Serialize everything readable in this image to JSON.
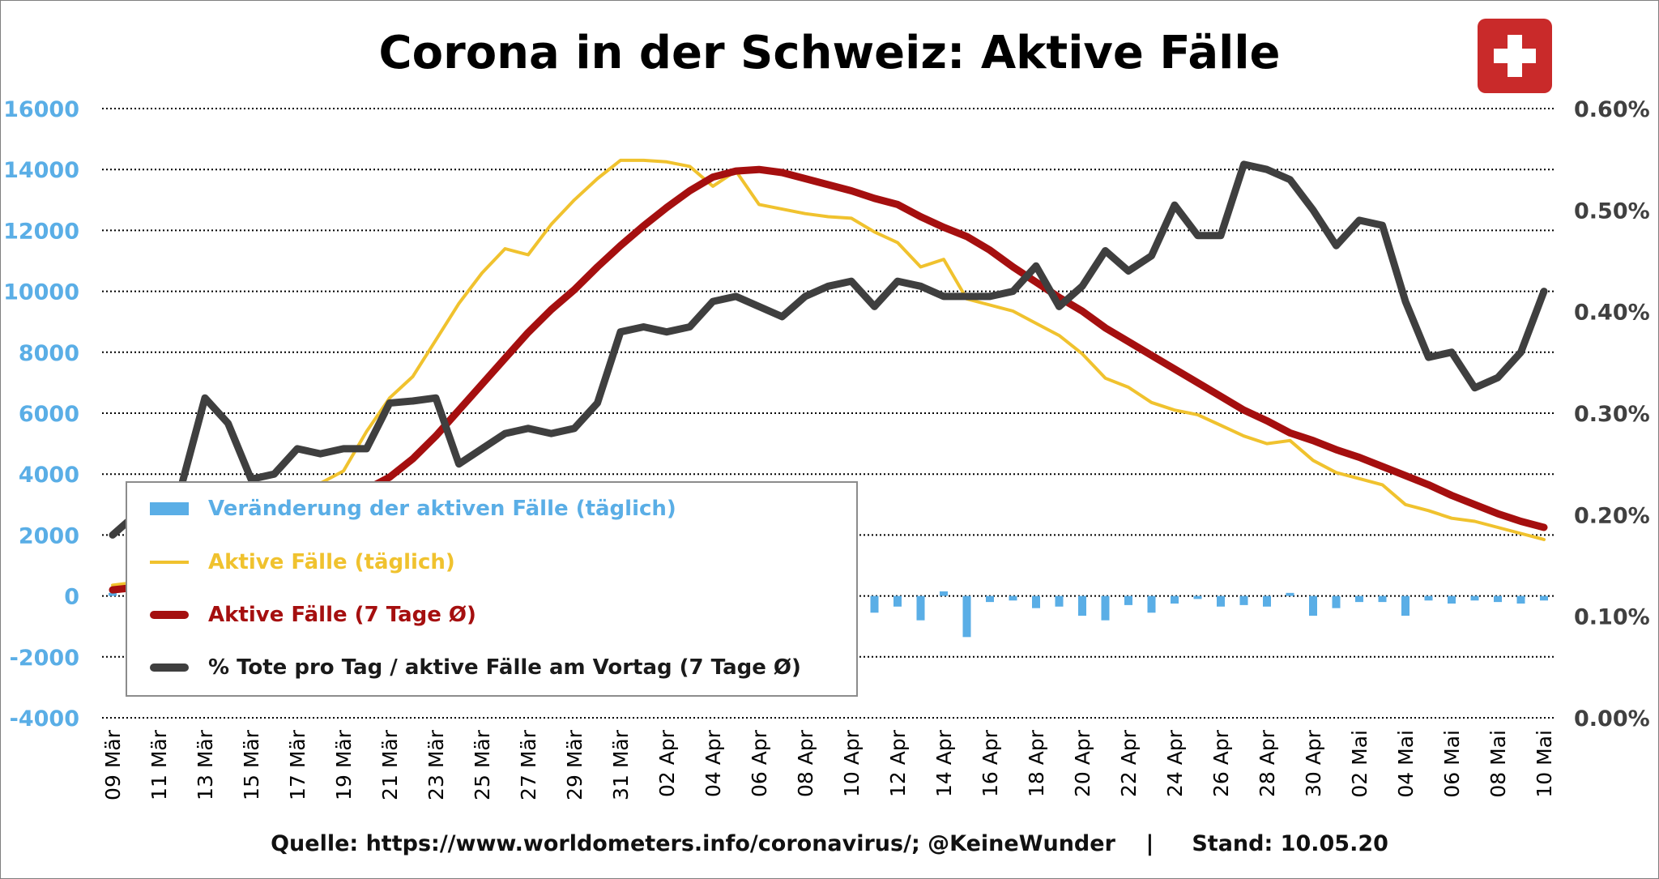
{
  "title": "Corona in der Schweiz: Aktive Fälle",
  "source": "Quelle: https://www.worldometers.info/coronavirus/; @KeineWunder    |     Stand: 10.05.20",
  "flag_icon": "swiss-flag-icon",
  "colors": {
    "left_axis": "#5aaee6",
    "right_axis": "#404040",
    "delta_bars": "#5aaee6",
    "active_daily": "#f0c22e",
    "active_avg": "#a50f0f",
    "death_rate": "#3f3f3f",
    "grid": "#000000"
  },
  "legend": {
    "delta": "Veränderung der aktiven Fälle (täglich)",
    "active_daily": "Aktive Fälle (täglich)",
    "active_avg": "Aktive Fälle (7 Tage Ø)",
    "death_rate": "% Tote pro Tag / aktive Fälle am Vortag (7 Tage Ø)"
  },
  "chart_data": {
    "type": "line",
    "title": "Corona in der Schweiz: Aktive Fälle",
    "x": [
      "09 Mär",
      "10 Mär",
      "11 Mär",
      "12 Mär",
      "13 Mär",
      "14 Mär",
      "15 Mär",
      "16 Mär",
      "17 Mär",
      "18 Mär",
      "19 Mär",
      "20 Mär",
      "21 Mär",
      "22 Mär",
      "23 Mär",
      "24 Mär",
      "25 Mär",
      "26 Mär",
      "27 Mär",
      "28 Mär",
      "29 Mär",
      "30 Mär",
      "31 Mär",
      "01 Apr",
      "02 Apr",
      "03 Apr",
      "04 Apr",
      "05 Apr",
      "06 Apr",
      "07 Apr",
      "08 Apr",
      "09 Apr",
      "10 Apr",
      "11 Apr",
      "12 Apr",
      "13 Apr",
      "14 Apr",
      "15 Apr",
      "16 Apr",
      "17 Apr",
      "18 Apr",
      "19 Apr",
      "20 Apr",
      "21 Apr",
      "22 Apr",
      "23 Apr",
      "24 Apr",
      "25 Apr",
      "26 Apr",
      "27 Apr",
      "28 Apr",
      "29 Apr",
      "30 Apr",
      "01 Mai",
      "02 Mai",
      "03 Mai",
      "04 Mai",
      "05 Mai",
      "06 Mai",
      "07 Mai",
      "08 Mai",
      "09 Mai",
      "10 Mai"
    ],
    "x_tick_labels": [
      "09 Mär",
      "11 Mär",
      "13 Mär",
      "15 Mär",
      "17 Mär",
      "19 Mär",
      "21 Mär",
      "23 Mär",
      "25 Mär",
      "27 Mär",
      "29 Mär",
      "31 Mär",
      "02 Apr",
      "04 Apr",
      "06 Apr",
      "08 Apr",
      "10 Apr",
      "12 Apr",
      "14 Apr",
      "16 Apr",
      "18 Apr",
      "20 Apr",
      "22 Apr",
      "24 Apr",
      "26 Apr",
      "28 Apr",
      "30 Apr",
      "02 Mai",
      "04 Mai",
      "06 Mai",
      "08 Mai",
      "10 Mai"
    ],
    "y_left": {
      "ylim": [
        -4000,
        16000
      ],
      "ticks": [
        -4000,
        -2000,
        0,
        2000,
        4000,
        6000,
        8000,
        10000,
        12000,
        14000,
        16000
      ]
    },
    "y_right": {
      "ylim": [
        0.0,
        0.6
      ],
      "ticks": [
        "0.00%",
        "0.10%",
        "0.20%",
        "0.30%",
        "0.40%",
        "0.50%",
        "0.60%"
      ]
    },
    "grid": true,
    "legend_position": "lower-left",
    "series": [
      {
        "name": "Veränderung der aktiven Fälle (täglich)",
        "type": "bar",
        "axis": "left",
        "values": [
          100,
          120,
          250,
          350,
          400,
          600,
          750,
          800,
          850,
          900,
          1050,
          1150,
          1450,
          550,
          800,
          1050,
          950,
          800,
          450,
          850,
          650,
          600,
          650,
          100,
          -50,
          50,
          -450,
          600,
          -1100,
          -200,
          -150,
          -100,
          -150,
          -550,
          -350,
          -800,
          150,
          -1350,
          -200,
          -150,
          -400,
          -350,
          -650,
          -800,
          -300,
          -550,
          -250,
          -100,
          -350,
          -300,
          -350,
          100,
          -650,
          -400,
          -200,
          -200,
          -650,
          -150,
          -250,
          -150,
          -200,
          -250,
          -150
        ]
      },
      {
        "name": "Aktive Fälle (täglich)",
        "type": "line",
        "axis": "left",
        "values": [
          350,
          450,
          700,
          1050,
          1400,
          2000,
          2700,
          3350,
          3650,
          3700,
          4100,
          5400,
          6500,
          7200,
          8400,
          9600,
          10600,
          11400,
          11200,
          12200,
          13000,
          13700,
          14300,
          14300,
          14250,
          14100,
          13450,
          13950,
          12850,
          12700,
          12550,
          12450,
          12400,
          11950,
          11600,
          10800,
          11050,
          9750,
          9550,
          9350,
          8950,
          8550,
          7950,
          7150,
          6850,
          6350,
          6100,
          5950,
          5600,
          5250,
          5000,
          5100,
          4450,
          4050,
          3850,
          3650,
          3000,
          2800,
          2550,
          2450,
          2250,
          2050,
          1850
        ]
      },
      {
        "name": "Aktive Fälle (7 Tage Ø)",
        "type": "line",
        "axis": "left",
        "values": [
          200,
          280,
          400,
          550,
          750,
          1000,
          1300,
          1650,
          2100,
          2500,
          3000,
          3500,
          3900,
          4500,
          5250,
          6100,
          6950,
          7800,
          8650,
          9400,
          10050,
          10800,
          11500,
          12150,
          12750,
          13300,
          13750,
          13950,
          14000,
          13900,
          13700,
          13500,
          13300,
          13050,
          12850,
          12450,
          12100,
          11800,
          11350,
          10800,
          10300,
          9800,
          9350,
          8800,
          8350,
          7900,
          7450,
          7000,
          6550,
          6100,
          5750,
          5350,
          5100,
          4800,
          4550,
          4250,
          3950,
          3650,
          3300,
          3000,
          2700,
          2450,
          2250
        ]
      },
      {
        "name": "% Tote pro Tag / aktive Fälle am Vortag (7 Tage Ø)",
        "type": "line",
        "axis": "right",
        "values": [
          0.18,
          0.2,
          0.21,
          0.23,
          0.315,
          0.29,
          0.235,
          0.24,
          0.265,
          0.26,
          0.265,
          0.265,
          0.31,
          0.312,
          0.315,
          0.25,
          0.265,
          0.28,
          0.285,
          0.28,
          0.285,
          0.31,
          0.38,
          0.385,
          0.38,
          0.385,
          0.41,
          0.415,
          0.405,
          0.395,
          0.415,
          0.425,
          0.43,
          0.405,
          0.43,
          0.425,
          0.415,
          0.415,
          0.415,
          0.42,
          0.445,
          0.405,
          0.425,
          0.46,
          0.44,
          0.455,
          0.505,
          0.475,
          0.475,
          0.545,
          0.54,
          0.53,
          0.5,
          0.465,
          0.49,
          0.485,
          0.41,
          0.355,
          0.36,
          0.325,
          0.335,
          0.36,
          0.42
        ]
      }
    ]
  }
}
